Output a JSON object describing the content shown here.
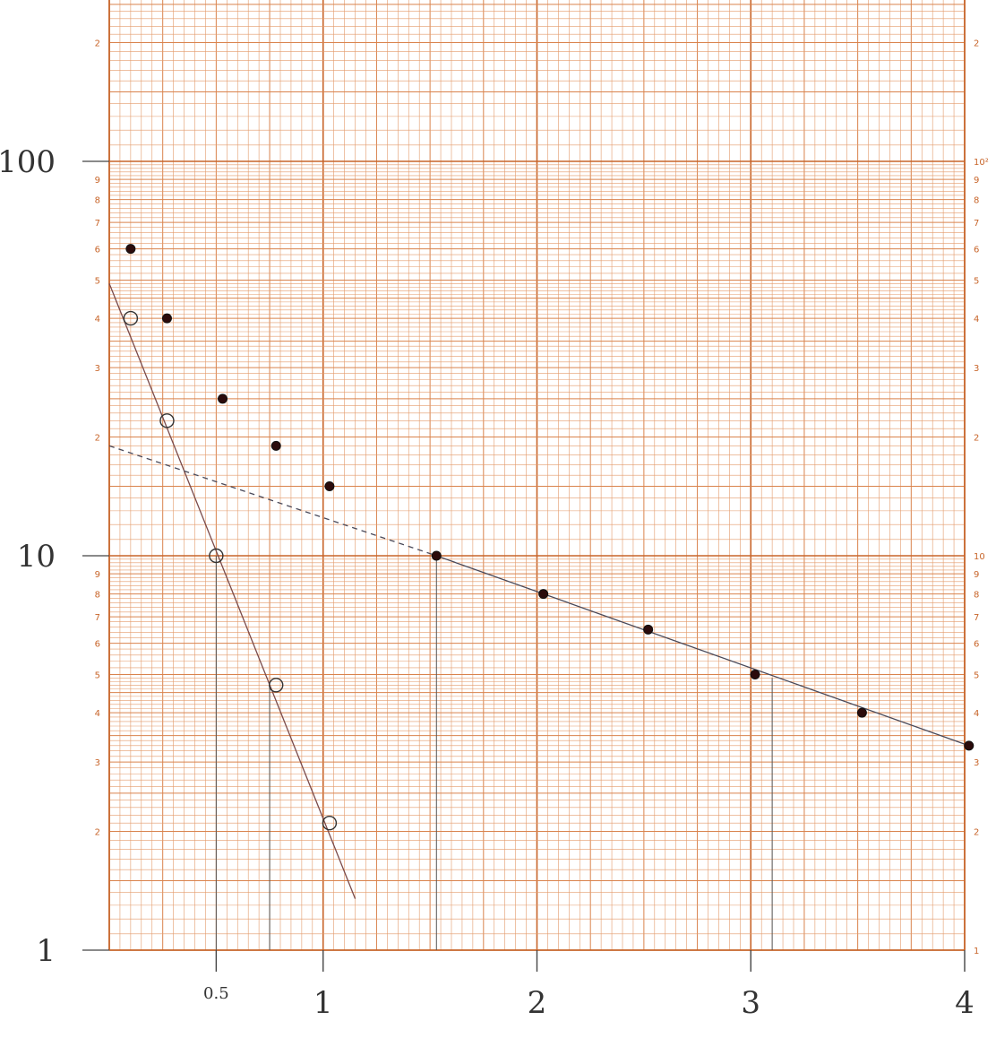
{
  "chart_data": {
    "type": "scatter",
    "y_scale": "log",
    "ylim": [
      1,
      300
    ],
    "xlim": [
      0,
      4
    ],
    "grid": true,
    "y_tick_labels_left_handwritten": [
      "100",
      "10",
      "1"
    ],
    "x_tick_labels_handwritten": [
      "0.5",
      "1",
      "2",
      "3",
      "4"
    ],
    "x_ticks": [
      0.5,
      1,
      2,
      3,
      4
    ],
    "series": [
      {
        "marker": "filled",
        "x": [
          0.1,
          0.27,
          0.53,
          0.78,
          1.03,
          1.53,
          2.03,
          2.52,
          3.02,
          3.52,
          4.02
        ],
        "y": [
          60,
          40,
          25,
          19,
          15,
          10,
          8,
          6.5,
          5,
          4,
          3.3
        ]
      },
      {
        "marker": "open",
        "x": [
          0.1,
          0.27,
          0.5,
          0.78,
          1.03
        ],
        "y": [
          40,
          22,
          10,
          4.7,
          2.1
        ]
      }
    ],
    "lines": [
      {
        "style": "solid",
        "x": [
          0.0,
          1.15
        ],
        "y": [
          49,
          1.35
        ]
      },
      {
        "style": "solid",
        "x": [
          1.53,
          4.02
        ],
        "y": [
          10,
          3.3
        ]
      },
      {
        "style": "dashed",
        "x": [
          0.0,
          1.53
        ],
        "y": [
          19,
          10
        ]
      }
    ],
    "verticals_at_x": [
      0.5,
      0.75,
      1.53,
      3.1
    ]
  }
}
